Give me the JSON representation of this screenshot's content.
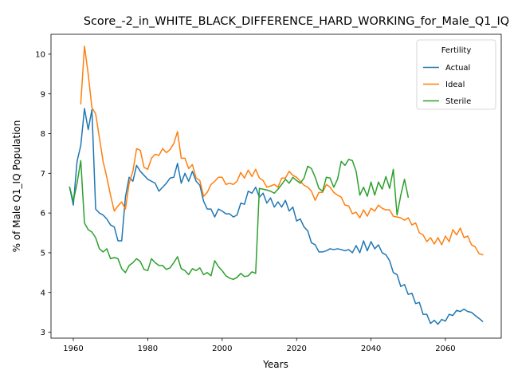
{
  "chart_data": {
    "type": "line",
    "title": "Score_-2_in_WHITE_BLACK_DIFFERENCE_HARD_WORKING_for_Male_Q1_IQ",
    "xlabel": "Years",
    "ylabel": "% of Male Q1_IQ Population",
    "xlim": [
      1954,
      2075
    ],
    "ylim": [
      2.85,
      10.5
    ],
    "xticks": [
      1960,
      1980,
      2000,
      2020,
      2040,
      2060
    ],
    "yticks": [
      3,
      4,
      5,
      6,
      7,
      8,
      9,
      10
    ],
    "grid": false,
    "legend": {
      "title": "Fertility",
      "placement": "top-right"
    },
    "series": [
      {
        "name": "Actual",
        "color": "#1f77b4",
        "x": [
          1959,
          1960,
          1961,
          1962,
          1963,
          1964,
          1965,
          1966,
          1967,
          1968,
          1969,
          1970,
          1971,
          1972,
          1973,
          1974,
          1975,
          1976,
          1977,
          1978,
          1979,
          1980,
          1981,
          1982,
          1983,
          1984,
          1985,
          1986,
          1987,
          1988,
          1989,
          1990,
          1991,
          1992,
          1993,
          1994,
          1995,
          1996,
          1997,
          1998,
          1999,
          2000,
          2001,
          2002,
          2003,
          2004,
          2005,
          2006,
          2007,
          2008,
          2009,
          2010,
          2011,
          2012,
          2013,
          2014,
          2015,
          2016,
          2017,
          2018,
          2019,
          2020,
          2021,
          2022,
          2023,
          2024,
          2025,
          2026,
          2027,
          2028,
          2029,
          2030,
          2031,
          2032,
          2033,
          2034,
          2035,
          2036,
          2037,
          2038,
          2039,
          2040,
          2041,
          2042,
          2043,
          2044,
          2045,
          2046,
          2047,
          2048,
          2049,
          2050,
          2051,
          2052,
          2053,
          2054,
          2055,
          2056,
          2057,
          2058,
          2059,
          2060,
          2061,
          2062,
          2063,
          2064,
          2065,
          2066,
          2067,
          2068,
          2069,
          2070
        ],
        "y": [
          6.65,
          6.2,
          7.3,
          7.7,
          8.63,
          8.1,
          8.6,
          6.1,
          6.0,
          5.95,
          5.85,
          5.7,
          5.65,
          5.3,
          5.3,
          6.4,
          6.9,
          6.8,
          7.2,
          7.05,
          6.95,
          6.85,
          6.8,
          6.75,
          6.55,
          6.65,
          6.75,
          6.88,
          6.9,
          7.25,
          6.75,
          7.0,
          6.8,
          7.05,
          6.8,
          6.7,
          6.3,
          6.1,
          6.1,
          5.9,
          6.1,
          6.05,
          5.98,
          5.98,
          5.9,
          5.95,
          6.25,
          6.22,
          6.55,
          6.5,
          6.65,
          6.4,
          6.5,
          6.25,
          6.38,
          6.15,
          6.28,
          6.15,
          6.32,
          6.05,
          6.15,
          5.8,
          5.85,
          5.65,
          5.55,
          5.25,
          5.2,
          5.02,
          5.02,
          5.05,
          5.1,
          5.08,
          5.1,
          5.08,
          5.05,
          5.08,
          5.0,
          5.18,
          5.0,
          5.3,
          5.05,
          5.28,
          5.1,
          5.2,
          5.0,
          4.95,
          4.8,
          4.5,
          4.45,
          4.15,
          4.2,
          3.95,
          3.98,
          3.72,
          3.75,
          3.45,
          3.45,
          3.22,
          3.3,
          3.2,
          3.32,
          3.28,
          3.45,
          3.42,
          3.55,
          3.52,
          3.58,
          3.52,
          3.5,
          3.42,
          3.35,
          3.27
        ]
      },
      {
        "name": "Ideal",
        "color": "#ff7f0e",
        "x": [
          1962,
          1963,
          1964,
          1965,
          1966,
          1967,
          1968,
          1969,
          1970,
          1971,
          1972,
          1973,
          1974,
          1975,
          1976,
          1977,
          1978,
          1979,
          1980,
          1981,
          1982,
          1983,
          1984,
          1985,
          1986,
          1987,
          1988,
          1989,
          1990,
          1991,
          1992,
          1993,
          1994,
          1995,
          1996,
          1997,
          1998,
          1999,
          2000,
          2001,
          2002,
          2003,
          2004,
          2005,
          2006,
          2007,
          2008,
          2009,
          2010,
          2011,
          2012,
          2013,
          2014,
          2015,
          2016,
          2017,
          2018,
          2019,
          2020,
          2021,
          2022,
          2023,
          2024,
          2025,
          2026,
          2027,
          2028,
          2029,
          2030,
          2031,
          2032,
          2033,
          2034,
          2035,
          2036,
          2037,
          2038,
          2039,
          2040,
          2041,
          2042,
          2043,
          2044,
          2045,
          2046,
          2047,
          2048,
          2049,
          2050,
          2051,
          2052,
          2053,
          2054,
          2055,
          2056,
          2057,
          2058,
          2059,
          2060,
          2061,
          2062,
          2063,
          2064,
          2065,
          2066,
          2067,
          2068,
          2069,
          2070
        ],
        "y": [
          8.75,
          10.2,
          9.5,
          8.65,
          8.5,
          7.9,
          7.3,
          6.9,
          6.45,
          6.05,
          6.18,
          6.28,
          6.1,
          6.75,
          7.05,
          7.62,
          7.58,
          7.15,
          7.1,
          7.38,
          7.48,
          7.45,
          7.62,
          7.52,
          7.6,
          7.75,
          8.05,
          7.38,
          7.38,
          7.12,
          7.22,
          6.88,
          6.82,
          6.42,
          6.52,
          6.72,
          6.8,
          6.9,
          6.9,
          6.72,
          6.75,
          6.72,
          6.8,
          7.02,
          6.88,
          7.08,
          6.92,
          7.1,
          6.88,
          6.82,
          6.65,
          6.68,
          6.72,
          6.65,
          6.88,
          6.88,
          7.05,
          6.95,
          6.9,
          6.8,
          6.7,
          6.65,
          6.55,
          6.32,
          6.52,
          6.52,
          6.72,
          6.65,
          6.52,
          6.45,
          6.4,
          6.2,
          6.18,
          5.98,
          6.02,
          5.88,
          6.08,
          5.92,
          6.12,
          6.05,
          6.2,
          6.12,
          6.08,
          6.08,
          5.92,
          5.9,
          5.88,
          5.82,
          5.88,
          5.7,
          5.75,
          5.5,
          5.45,
          5.28,
          5.38,
          5.22,
          5.38,
          5.2,
          5.42,
          5.28,
          5.58,
          5.45,
          5.62,
          5.38,
          5.42,
          5.2,
          5.15,
          4.98,
          4.95
        ]
      },
      {
        "name": "Sterile",
        "color": "#2ca02c",
        "x": [
          1959,
          1960,
          1961,
          1962,
          1963,
          1964,
          1965,
          1966,
          1967,
          1968,
          1969,
          1970,
          1971,
          1972,
          1973,
          1974,
          1975,
          1976,
          1977,
          1978,
          1979,
          1980,
          1981,
          1982,
          1983,
          1984,
          1985,
          1986,
          1987,
          1988,
          1989,
          1990,
          1991,
          1992,
          1993,
          1994,
          1995,
          1996,
          1997,
          1998,
          1999,
          2000,
          2001,
          2002,
          2003,
          2004,
          2005,
          2006,
          2007,
          2008,
          2009,
          2010,
          2011,
          2012,
          2013,
          2014,
          2015,
          2016,
          2017,
          2018,
          2019,
          2020,
          2021,
          2022,
          2023,
          2024,
          2025,
          2026,
          2027,
          2028,
          2029,
          2030,
          2031,
          2032,
          2033,
          2034,
          2035,
          2036,
          2037,
          2038,
          2039,
          2040,
          2041,
          2042,
          2043,
          2044,
          2045,
          2046,
          2047,
          2048,
          2049,
          2050
        ],
        "y": [
          6.65,
          6.3,
          6.75,
          7.32,
          5.75,
          5.58,
          5.52,
          5.38,
          5.1,
          5.02,
          5.1,
          4.85,
          4.88,
          4.85,
          4.6,
          4.5,
          4.68,
          4.75,
          4.85,
          4.78,
          4.58,
          4.55,
          4.85,
          4.75,
          4.68,
          4.68,
          4.58,
          4.62,
          4.75,
          4.9,
          4.6,
          4.55,
          4.45,
          4.6,
          4.55,
          4.62,
          4.45,
          4.5,
          4.42,
          4.8,
          4.65,
          4.55,
          4.42,
          4.36,
          4.33,
          4.38,
          4.48,
          4.4,
          4.42,
          4.52,
          4.48,
          6.62,
          6.6,
          6.58,
          6.55,
          6.5,
          6.6,
          6.72,
          6.85,
          6.75,
          6.9,
          6.82,
          6.75,
          6.88,
          7.18,
          7.12,
          6.9,
          6.62,
          6.55,
          6.9,
          6.88,
          6.65,
          6.85,
          7.3,
          7.2,
          7.35,
          7.32,
          7.05,
          6.45,
          6.65,
          6.42,
          6.78,
          6.45,
          6.78,
          6.6,
          6.92,
          6.62,
          7.1,
          5.95,
          6.45,
          6.85,
          6.4
        ]
      }
    ]
  }
}
